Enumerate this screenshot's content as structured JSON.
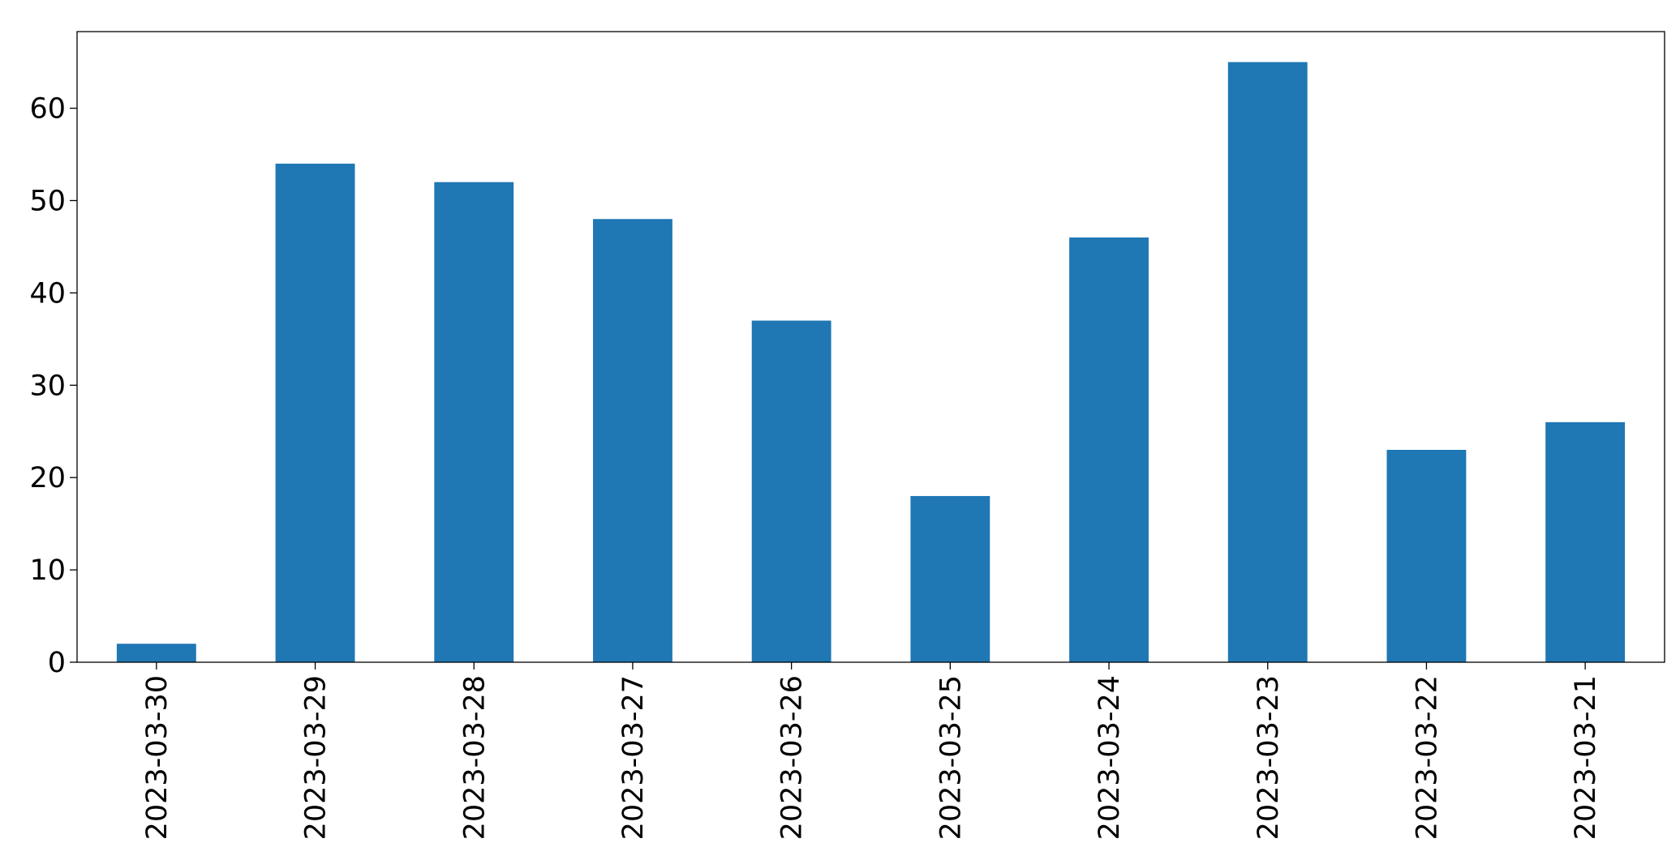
{
  "chart_data": {
    "type": "bar",
    "categories": [
      "2023-03-30",
      "2023-03-29",
      "2023-03-28",
      "2023-03-27",
      "2023-03-26",
      "2023-03-25",
      "2023-03-24",
      "2023-03-23",
      "2023-03-22",
      "2023-03-21"
    ],
    "values": [
      2,
      54,
      52,
      48,
      37,
      18,
      46,
      65,
      23,
      26
    ],
    "color": "#1f77b4",
    "ylim": [
      0,
      68.3
    ],
    "yticks": [
      0,
      10,
      20,
      30,
      40,
      50,
      60
    ]
  }
}
